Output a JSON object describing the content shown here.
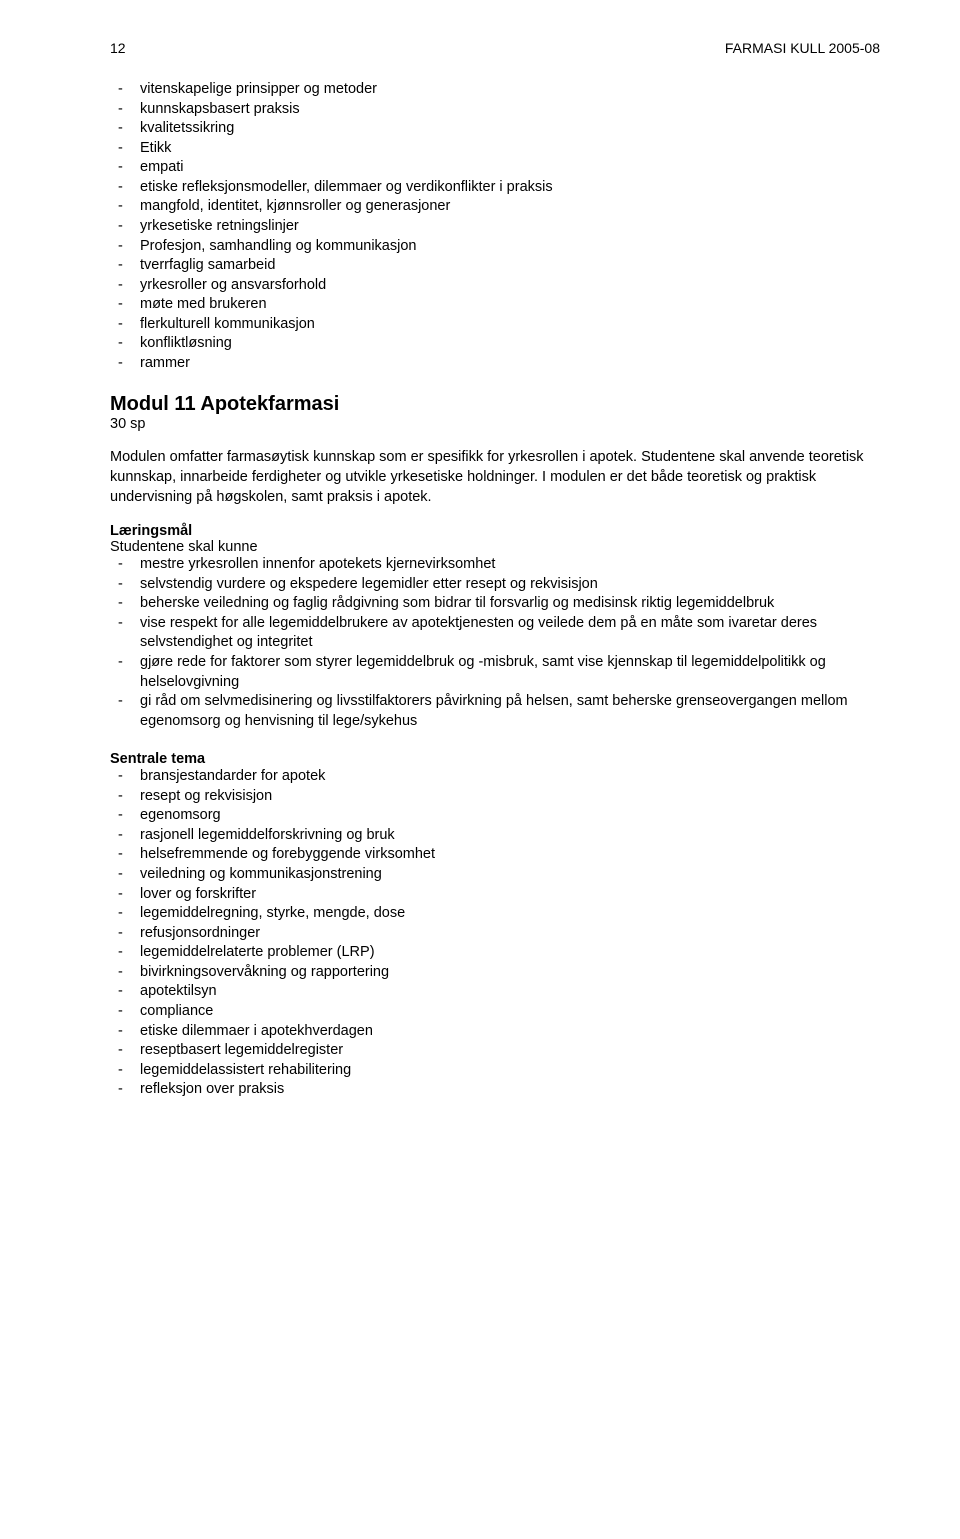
{
  "header": {
    "page_number": "12",
    "doc_title": "FARMASI KULL 2005-08"
  },
  "intro_list": [
    "vitenskapelige prinsipper og metoder",
    "kunnskapsbasert praksis",
    "kvalitetssikring",
    "Etikk",
    "empati",
    "etiske refleksjonsmodeller, dilemmaer og verdikonflikter i praksis",
    "mangfold, identitet, kjønnsroller og generasjoner",
    "yrkesetiske retningslinjer",
    "Profesjon, samhandling og kommunikasjon",
    "tverrfaglig samarbeid",
    "yrkesroller og ansvarsforhold",
    "møte med brukeren",
    "flerkulturell kommunikasjon",
    "konfliktløsning",
    "rammer"
  ],
  "module": {
    "title": "Modul 11 Apotekfarmasi",
    "sp": "30 sp",
    "description": "Modulen omfatter farmasøytisk kunnskap som er spesifikk for yrkesrollen i apotek. Studentene skal anvende teoretisk kunnskap, innarbeide ferdigheter og utvikle yrkesetiske holdninger. I modulen er det både teoretisk og praktisk undervisning på høgskolen, samt praksis i apotek."
  },
  "learning": {
    "heading": "Læringsmål",
    "intro": "Studentene skal kunne",
    "items": [
      "mestre yrkesrollen innenfor apotekets kjernevirksomhet",
      "selvstendig vurdere og ekspedere legemidler etter resept og rekvisisjon",
      "beherske veiledning og faglig rådgivning som bidrar til forsvarlig og medisinsk riktig legemiddelbruk",
      "vise respekt for alle legemiddelbrukere av apotektjenesten og veilede dem på en måte som ivaretar deres selvstendighet og integritet",
      "gjøre rede for faktorer som styrer legemiddelbruk og -misbruk, samt vise kjennskap til legemiddelpolitikk og helselovgivning",
      "gi råd om selvmedisinering og livsstilfaktorers påvirkning på helsen, samt beherske grenseovergangen mellom egenomsorg og henvisning til lege/sykehus"
    ]
  },
  "themes": {
    "heading": "Sentrale tema",
    "items": [
      "bransjestandarder for apotek",
      "resept og rekvisisjon",
      "egenomsorg",
      "rasjonell legemiddelforskrivning og  bruk",
      "helsefremmende og forebyggende virksomhet",
      "veiledning og kommunikasjonstrening",
      "lover og forskrifter",
      "legemiddelregning, styrke, mengde, dose",
      "refusjonsordninger",
      "legemiddelrelaterte problemer (LRP)",
      "bivirkningsovervåkning og  rapportering",
      "apotektilsyn",
      "compliance",
      "etiske dilemmaer i apotekhverdagen",
      "reseptbasert legemiddelregister",
      "legemiddelassistert rehabilitering",
      "refleksjon over praksis"
    ]
  }
}
